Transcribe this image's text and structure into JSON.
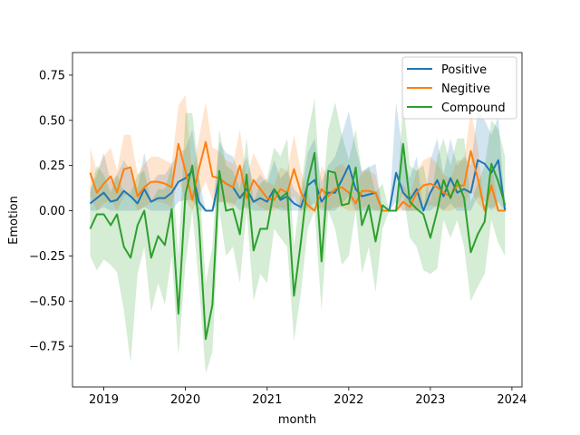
{
  "chart_data": {
    "type": "line",
    "title": "",
    "xlabel": "month",
    "ylabel": "Emotion",
    "xlim": [
      "2018-08-14",
      "2024-02-15"
    ],
    "ylim": [
      -0.975,
      0.875
    ],
    "x_ticks": [
      "2019",
      "2020",
      "2021",
      "2022",
      "2023",
      "2024"
    ],
    "y_ticks": [
      -0.75,
      -0.5,
      -0.25,
      0.0,
      0.25,
      0.5,
      0.75
    ],
    "y_tick_labels": [
      "−0.75",
      "−0.50",
      "−0.25",
      "0.00",
      "0.25",
      "0.50",
      "0.75"
    ],
    "grid": false,
    "legend_position": "top-right",
    "x": [
      "2018-11",
      "2018-12",
      "2019-01",
      "2019-02",
      "2019-03",
      "2019-04",
      "2019-05",
      "2019-06",
      "2019-07",
      "2019-08",
      "2019-09",
      "2019-10",
      "2019-11",
      "2019-12",
      "2020-01",
      "2020-02",
      "2020-03",
      "2020-04",
      "2020-05",
      "2020-06",
      "2020-07",
      "2020-08",
      "2020-09",
      "2020-10",
      "2020-11",
      "2020-12",
      "2021-01",
      "2021-02",
      "2021-03",
      "2021-04",
      "2021-05",
      "2021-06",
      "2021-07",
      "2021-08",
      "2021-09",
      "2021-10",
      "2021-11",
      "2021-12",
      "2022-01",
      "2022-02",
      "2022-03",
      "2022-04",
      "2022-05",
      "2022-06",
      "2022-07",
      "2022-08",
      "2022-09",
      "2022-10",
      "2022-11",
      "2022-12",
      "2023-01",
      "2023-02",
      "2023-03",
      "2023-04",
      "2023-05",
      "2023-06",
      "2023-07",
      "2023-08",
      "2023-09",
      "2023-10",
      "2023-11",
      "2023-12"
    ],
    "series": [
      {
        "name": "Positive",
        "color": "#1f77b4",
        "values": [
          0.04,
          0.07,
          0.1,
          0.05,
          0.06,
          0.11,
          0.08,
          0.04,
          0.12,
          0.05,
          0.07,
          0.07,
          0.1,
          0.16,
          0.18,
          0.22,
          0.05,
          0.0,
          0.0,
          0.18,
          0.15,
          0.13,
          0.07,
          0.12,
          0.05,
          0.07,
          0.05,
          0.12,
          0.06,
          0.08,
          0.04,
          0.02,
          0.14,
          0.17,
          0.05,
          0.1,
          0.1,
          0.17,
          0.25,
          0.12,
          0.08,
          0.09,
          0.1,
          0.0,
          0.0,
          0.21,
          0.1,
          0.06,
          0.12,
          0.0,
          0.1,
          0.17,
          0.08,
          0.18,
          0.1,
          0.12,
          0.1,
          0.28,
          0.26,
          0.21,
          0.28,
          0.0
        ],
        "band_low": [
          0.0,
          0.0,
          0.02,
          0.0,
          0.0,
          0.0,
          0.0,
          0.0,
          0.02,
          0.0,
          0.0,
          0.0,
          0.0,
          0.05,
          0.06,
          0.06,
          0.0,
          0.0,
          0.0,
          0.05,
          0.05,
          0.04,
          0.0,
          0.02,
          0.0,
          0.0,
          0.0,
          0.02,
          0.0,
          0.0,
          0.0,
          0.0,
          0.02,
          0.04,
          0.0,
          0.0,
          0.0,
          0.04,
          0.08,
          0.0,
          0.0,
          0.0,
          0.0,
          0.0,
          0.0,
          0.05,
          0.0,
          0.0,
          0.0,
          0.0,
          0.0,
          0.03,
          0.0,
          0.04,
          0.0,
          0.0,
          0.0,
          0.08,
          0.05,
          0.0,
          0.05,
          0.0
        ],
        "band_high": [
          0.12,
          0.2,
          0.32,
          0.16,
          0.2,
          0.28,
          0.22,
          0.12,
          0.32,
          0.15,
          0.2,
          0.2,
          0.26,
          0.32,
          0.34,
          0.45,
          0.18,
          0.0,
          0.0,
          0.38,
          0.32,
          0.3,
          0.2,
          0.3,
          0.15,
          0.2,
          0.15,
          0.28,
          0.18,
          0.22,
          0.12,
          0.08,
          0.32,
          0.4,
          0.16,
          0.25,
          0.3,
          0.42,
          0.55,
          0.35,
          0.22,
          0.24,
          0.26,
          0.0,
          0.0,
          0.6,
          0.3,
          0.18,
          0.3,
          0.0,
          0.28,
          0.4,
          0.2,
          0.4,
          0.25,
          0.3,
          0.25,
          0.55,
          0.5,
          0.42,
          0.52,
          0.0
        ]
      },
      {
        "name": "Negitive",
        "color": "#ff7f0e",
        "values": [
          0.21,
          0.1,
          0.15,
          0.19,
          0.1,
          0.23,
          0.24,
          0.08,
          0.13,
          0.16,
          0.16,
          0.15,
          0.13,
          0.37,
          0.22,
          0.06,
          0.23,
          0.38,
          0.19,
          0.18,
          0.15,
          0.13,
          0.25,
          0.07,
          0.17,
          0.12,
          0.07,
          0.06,
          0.12,
          0.1,
          0.23,
          0.1,
          0.03,
          0.0,
          0.12,
          0.08,
          0.12,
          0.13,
          0.1,
          0.04,
          0.11,
          0.11,
          0.1,
          0.0,
          0.0,
          0.0,
          0.05,
          0.02,
          0.1,
          0.14,
          0.15,
          0.13,
          0.1,
          0.08,
          0.14,
          0.14,
          0.33,
          0.18,
          0.0,
          0.14,
          0.0,
          0.0
        ],
        "band_low": [
          0.08,
          0.0,
          0.04,
          0.06,
          0.0,
          0.08,
          0.1,
          0.0,
          0.02,
          0.05,
          0.05,
          0.04,
          0.02,
          0.18,
          0.06,
          0.0,
          0.08,
          0.16,
          0.06,
          0.05,
          0.04,
          0.02,
          0.08,
          0.0,
          0.05,
          0.02,
          0.0,
          0.0,
          0.02,
          0.0,
          0.08,
          0.0,
          0.0,
          0.0,
          0.02,
          0.0,
          0.02,
          0.02,
          0.0,
          0.0,
          0.02,
          0.02,
          0.0,
          0.0,
          0.0,
          0.0,
          0.0,
          0.0,
          0.0,
          0.02,
          0.03,
          0.02,
          0.0,
          0.0,
          0.02,
          0.02,
          0.12,
          0.04,
          0.0,
          0.02,
          0.0,
          0.0
        ],
        "band_high": [
          0.35,
          0.22,
          0.3,
          0.35,
          0.22,
          0.42,
          0.42,
          0.2,
          0.26,
          0.3,
          0.3,
          0.28,
          0.26,
          0.58,
          0.64,
          0.2,
          0.4,
          0.6,
          0.35,
          0.33,
          0.28,
          0.26,
          0.45,
          0.18,
          0.32,
          0.24,
          0.16,
          0.14,
          0.24,
          0.22,
          0.42,
          0.22,
          0.1,
          0.0,
          0.25,
          0.18,
          0.24,
          0.26,
          0.22,
          0.12,
          0.22,
          0.22,
          0.2,
          0.0,
          0.0,
          0.0,
          0.15,
          0.08,
          0.22,
          0.28,
          0.3,
          0.26,
          0.2,
          0.18,
          0.28,
          0.28,
          0.55,
          0.36,
          0.0,
          0.28,
          0.0,
          0.0
        ]
      },
      {
        "name": "Compound",
        "color": "#2ca02c",
        "values": [
          -0.1,
          -0.02,
          -0.02,
          -0.08,
          -0.02,
          -0.2,
          -0.26,
          -0.08,
          0.0,
          -0.26,
          -0.14,
          -0.19,
          0.01,
          -0.57,
          0.09,
          0.25,
          -0.06,
          -0.71,
          -0.52,
          0.22,
          0.0,
          0.01,
          -0.13,
          0.2,
          -0.22,
          -0.1,
          -0.1,
          0.12,
          0.07,
          0.1,
          -0.47,
          -0.17,
          0.16,
          0.32,
          -0.28,
          0.22,
          0.21,
          0.03,
          0.04,
          0.24,
          -0.08,
          0.03,
          -0.17,
          0.03,
          0.0,
          0.0,
          0.37,
          0.05,
          0.01,
          -0.02,
          -0.15,
          0.0,
          0.17,
          0.07,
          0.17,
          0.07,
          -0.23,
          -0.13,
          -0.06,
          0.26,
          0.16,
          0.03
        ],
        "band_low": [
          -0.25,
          -0.33,
          -0.27,
          -0.3,
          -0.34,
          -0.55,
          -0.84,
          -0.35,
          -0.2,
          -0.56,
          -0.4,
          -0.52,
          -0.25,
          -0.8,
          -0.3,
          0.0,
          -0.4,
          -0.9,
          -0.78,
          0.0,
          -0.25,
          -0.2,
          -0.4,
          0.0,
          -0.5,
          -0.35,
          -0.4,
          -0.1,
          -0.15,
          -0.2,
          -0.72,
          -0.45,
          -0.1,
          0.0,
          -0.55,
          0.0,
          -0.1,
          -0.3,
          -0.25,
          0.0,
          -0.35,
          -0.2,
          -0.45,
          -0.1,
          0.0,
          0.0,
          0.1,
          -0.15,
          -0.2,
          -0.33,
          -0.35,
          -0.32,
          -0.05,
          -0.15,
          -0.05,
          -0.2,
          -0.5,
          -0.42,
          -0.35,
          -0.05,
          -0.18,
          -0.25
        ],
        "band_high": [
          0.1,
          0.25,
          0.2,
          0.1,
          0.2,
          0.1,
          0.1,
          0.2,
          0.22,
          0.05,
          0.12,
          0.12,
          0.25,
          -0.25,
          0.54,
          0.54,
          0.22,
          -0.4,
          -0.2,
          0.45,
          0.25,
          0.22,
          0.12,
          0.4,
          0.05,
          0.15,
          0.18,
          0.35,
          0.3,
          0.4,
          -0.2,
          0.12,
          0.42,
          0.62,
          0.0,
          0.45,
          0.6,
          0.42,
          0.28,
          0.45,
          0.2,
          0.25,
          0.1,
          0.15,
          0.0,
          0.0,
          0.6,
          0.25,
          0.22,
          0.25,
          0.05,
          0.3,
          0.4,
          0.25,
          0.4,
          0.4,
          0.05,
          0.15,
          0.25,
          0.5,
          0.45,
          0.3
        ]
      }
    ]
  }
}
